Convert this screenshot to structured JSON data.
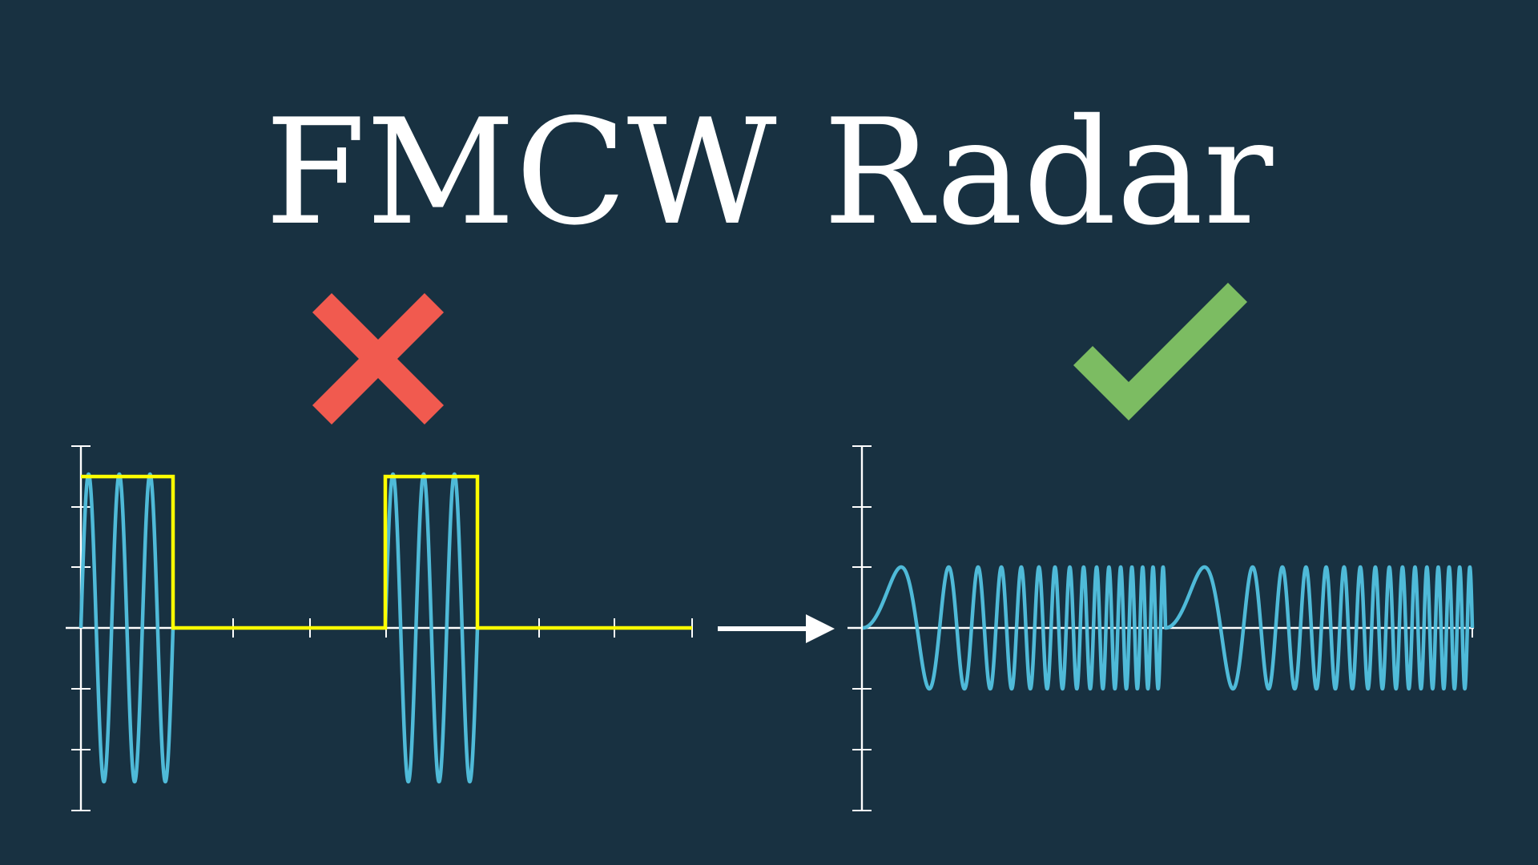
{
  "title": "FMCW Radar",
  "colors": {
    "background": "#183141",
    "title": "#ffffff",
    "axis": "#ffffff",
    "wave": "#4fbad8",
    "pulse_envelope": "#ffff00",
    "cross_mark": "#f15a4f",
    "check_mark": "#7cbc62",
    "arrow": "#ffffff"
  },
  "icons": {
    "reject": "cross-icon",
    "accept": "check-icon",
    "transition": "right-arrow-icon"
  },
  "panels": {
    "pulsed": {
      "description_icon": "cross-icon",
      "pulse_count": 2,
      "cycles_per_pulse": 3
    },
    "fmcw": {
      "description_icon": "check-icon",
      "chirp_count": 2
    }
  }
}
